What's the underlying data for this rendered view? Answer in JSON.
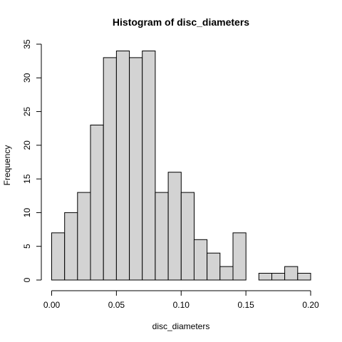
{
  "chart_data": {
    "type": "bar",
    "title": "Histogram of disc_diameters",
    "xlabel": "disc_diameters",
    "ylabel": "Frequency",
    "bin_width": 0.01,
    "bin_starts": [
      0.0,
      0.01,
      0.02,
      0.03,
      0.04,
      0.05,
      0.06,
      0.07,
      0.08,
      0.09,
      0.1,
      0.11,
      0.12,
      0.13,
      0.14,
      0.15,
      0.16,
      0.17,
      0.18,
      0.19
    ],
    "values": [
      7,
      10,
      13,
      23,
      33,
      34,
      33,
      34,
      13,
      16,
      13,
      6,
      4,
      2,
      7,
      0,
      1,
      1,
      2,
      1
    ],
    "xlim": [
      0.0,
      0.2
    ],
    "ylim": [
      0,
      35
    ],
    "x_ticks": [
      "0.00",
      "0.05",
      "0.10",
      "0.15",
      "0.20"
    ],
    "y_ticks": [
      "0",
      "5",
      "10",
      "15",
      "20",
      "25",
      "30",
      "35"
    ],
    "bar_fill": "#d3d3d3",
    "bar_stroke": "#000000",
    "grid": false
  }
}
